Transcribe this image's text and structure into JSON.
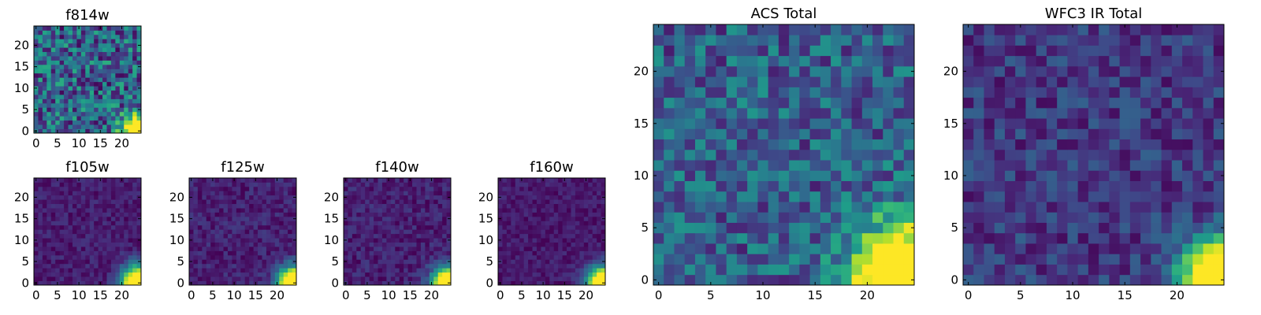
{
  "chart_data": [
    {
      "type": "heatmap",
      "title": "f814w",
      "colormap": "viridis",
      "xlim": [
        -0.5,
        24.5
      ],
      "ylim": [
        -0.5,
        24.5
      ],
      "xticks": [
        "0",
        "5",
        "10",
        "15",
        "20"
      ],
      "yticks": [
        "0",
        "5",
        "10",
        "15",
        "20"
      ],
      "model": {
        "background": 0.32,
        "noise": 0.3,
        "peak": 1.0,
        "peak_x": 24,
        "peak_y": 0,
        "sigma": 2.6
      }
    },
    {
      "type": "heatmap",
      "title": "f105w",
      "colormap": "viridis",
      "xlim": [
        -0.5,
        24.5
      ],
      "ylim": [
        -0.5,
        24.5
      ],
      "xticks": [
        "0",
        "5",
        "10",
        "15",
        "20"
      ],
      "yticks": [
        "0",
        "5",
        "10",
        "15",
        "20"
      ],
      "model": {
        "background": 0.08,
        "noise": 0.08,
        "peak": 1.0,
        "peak_x": 24,
        "peak_y": 0,
        "sigma": 2.8
      }
    },
    {
      "type": "heatmap",
      "title": "f125w",
      "colormap": "viridis",
      "xlim": [
        -0.5,
        24.5
      ],
      "ylim": [
        -0.5,
        24.5
      ],
      "xticks": [
        "0",
        "5",
        "10",
        "15",
        "20"
      ],
      "yticks": [
        "0",
        "5",
        "10",
        "15",
        "20"
      ],
      "model": {
        "background": 0.09,
        "noise": 0.09,
        "peak": 1.0,
        "peak_x": 24,
        "peak_y": 0,
        "sigma": 2.6
      }
    },
    {
      "type": "heatmap",
      "title": "f140w",
      "colormap": "viridis",
      "xlim": [
        -0.5,
        24.5
      ],
      "ylim": [
        -0.5,
        24.5
      ],
      "xticks": [
        "0",
        "5",
        "10",
        "15",
        "20"
      ],
      "yticks": [
        "0",
        "5",
        "10",
        "15",
        "20"
      ],
      "model": {
        "background": 0.09,
        "noise": 0.09,
        "peak": 1.0,
        "peak_x": 24,
        "peak_y": 0,
        "sigma": 2.6
      }
    },
    {
      "type": "heatmap",
      "title": "f160w",
      "colormap": "viridis",
      "xlim": [
        -0.5,
        24.5
      ],
      "ylim": [
        -0.5,
        24.5
      ],
      "xticks": [
        "0",
        "5",
        "10",
        "15",
        "20"
      ],
      "yticks": [
        "0",
        "5",
        "10",
        "15",
        "20"
      ],
      "model": {
        "background": 0.07,
        "noise": 0.07,
        "peak": 1.0,
        "peak_x": 24,
        "peak_y": 0,
        "sigma": 2.6
      }
    },
    {
      "type": "heatmap",
      "title": "ACS Total",
      "colormap": "viridis",
      "xlim": [
        -0.5,
        24.5
      ],
      "ylim": [
        -0.5,
        24.5
      ],
      "xticks": [
        "0",
        "5",
        "10",
        "15",
        "20"
      ],
      "yticks": [
        "0",
        "5",
        "10",
        "15",
        "20"
      ],
      "model": {
        "background": 0.3,
        "noise": 0.22,
        "peak": 1.0,
        "peak_x": 24,
        "peak_y": 0,
        "sigma": 3.6
      }
    },
    {
      "type": "heatmap",
      "title": "WFC3 IR Total",
      "colormap": "viridis",
      "xlim": [
        -0.5,
        24.5
      ],
      "ylim": [
        -0.5,
        24.5
      ],
      "xticks": [
        "0",
        "5",
        "10",
        "15",
        "20"
      ],
      "yticks": [
        "0",
        "5",
        "10",
        "15",
        "20"
      ],
      "model": {
        "background": 0.17,
        "noise": 0.14,
        "peak": 1.0,
        "peak_x": 24,
        "peak_y": 0,
        "sigma": 2.5
      }
    }
  ]
}
